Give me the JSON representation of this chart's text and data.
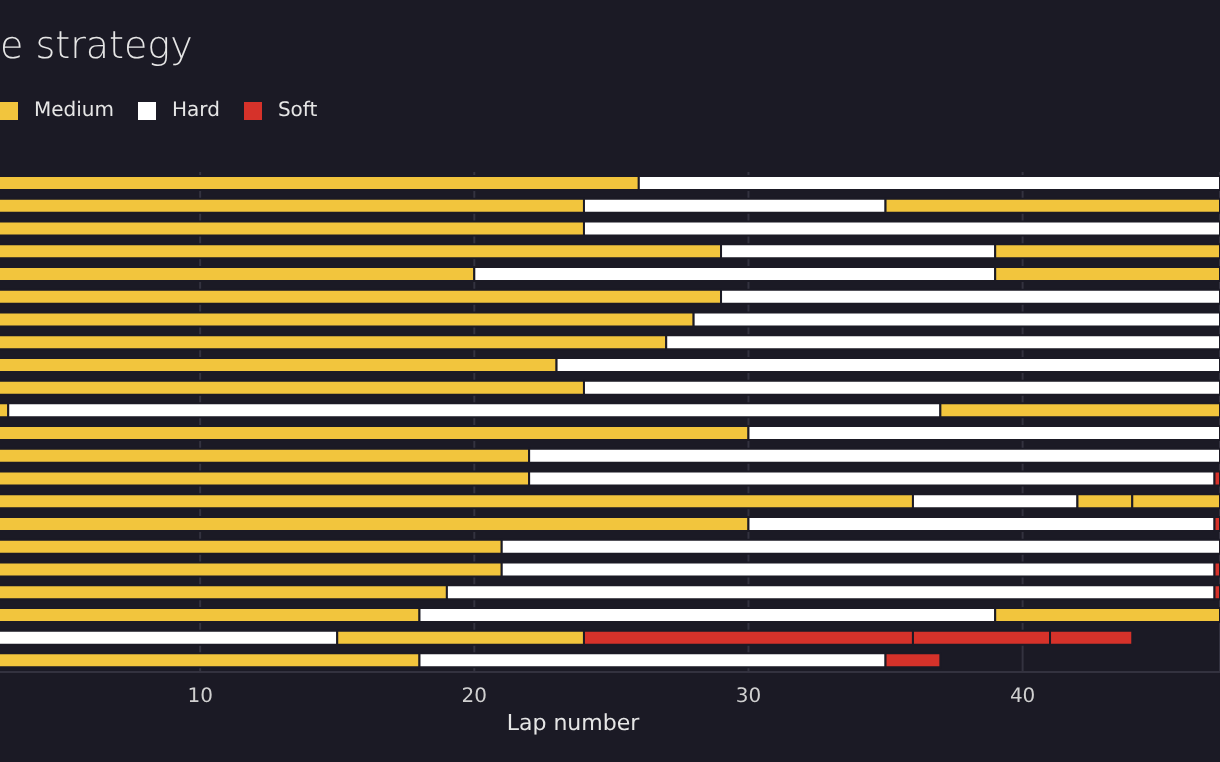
{
  "chart_data": {
    "type": "bar",
    "orientation": "horizontal",
    "stacked": true,
    "title": "e strategy",
    "xlabel": "Lap number",
    "categories": [
      null,
      null,
      null,
      null,
      null,
      null,
      null,
      null,
      null,
      null,
      null,
      null,
      null,
      null,
      null,
      null,
      null,
      null,
      null,
      null,
      null,
      null
    ],
    "series": [
      {
        "color": "#ffffff",
        "values": [
          null,
          null,
          null,
          null,
          null,
          null,
          null,
          null,
          null,
          null,
          null,
          null,
          null,
          null,
          null,
          null,
          null,
          null,
          null,
          null,
          15,
          null
        ]
      },
      {
        "name": "Medium",
        "color": "#f2c53d",
        "values": [
          26,
          24,
          24,
          29,
          20,
          29,
          28,
          27,
          23,
          24,
          3,
          30,
          22,
          22,
          36,
          30,
          21,
          21,
          19,
          18,
          9,
          18
        ]
      },
      {
        "name": "Hard",
        "color": "#ffffff",
        "values": [
          21.2,
          11,
          23.2,
          10,
          19,
          18.2,
          19.2,
          20.2,
          24.2,
          23.2,
          34,
          17.2,
          25.2,
          25,
          6,
          17,
          26.2,
          26,
          28,
          21,
          null,
          17
        ]
      },
      {
        "color": "#f2c53d",
        "values": [
          null,
          12.2,
          null,
          8.2,
          8.2,
          null,
          null,
          null,
          null,
          null,
          10.2,
          null,
          null,
          null,
          2,
          null,
          null,
          null,
          null,
          8.2,
          null,
          null
        ]
      },
      {
        "color": "#f2c53d",
        "values": [
          null,
          null,
          null,
          null,
          null,
          null,
          null,
          null,
          null,
          null,
          null,
          null,
          null,
          null,
          3.2,
          null,
          null,
          null,
          null,
          null,
          null,
          null
        ]
      },
      {
        "name": "Soft",
        "color": "#d6322a",
        "values": [
          null,
          null,
          null,
          null,
          null,
          null,
          null,
          null,
          null,
          null,
          null,
          null,
          null,
          0.2,
          null,
          0.2,
          null,
          0.2,
          0.2,
          null,
          12,
          2
        ]
      },
      {
        "color": "#d6322a",
        "values": [
          null,
          null,
          null,
          null,
          null,
          null,
          null,
          null,
          null,
          null,
          null,
          null,
          null,
          null,
          null,
          null,
          null,
          null,
          null,
          null,
          5,
          null
        ]
      },
      {
        "color": "#d6322a",
        "values": [
          null,
          null,
          null,
          null,
          null,
          null,
          null,
          null,
          null,
          null,
          null,
          null,
          null,
          null,
          null,
          null,
          null,
          null,
          null,
          null,
          3,
          null
        ]
      }
    ],
    "xlim": [
      0,
      47.2
    ],
    "xticks": [
      10,
      20,
      30,
      40
    ],
    "grid": "x",
    "legend": "top left",
    "tick_labels": "x"
  }
}
